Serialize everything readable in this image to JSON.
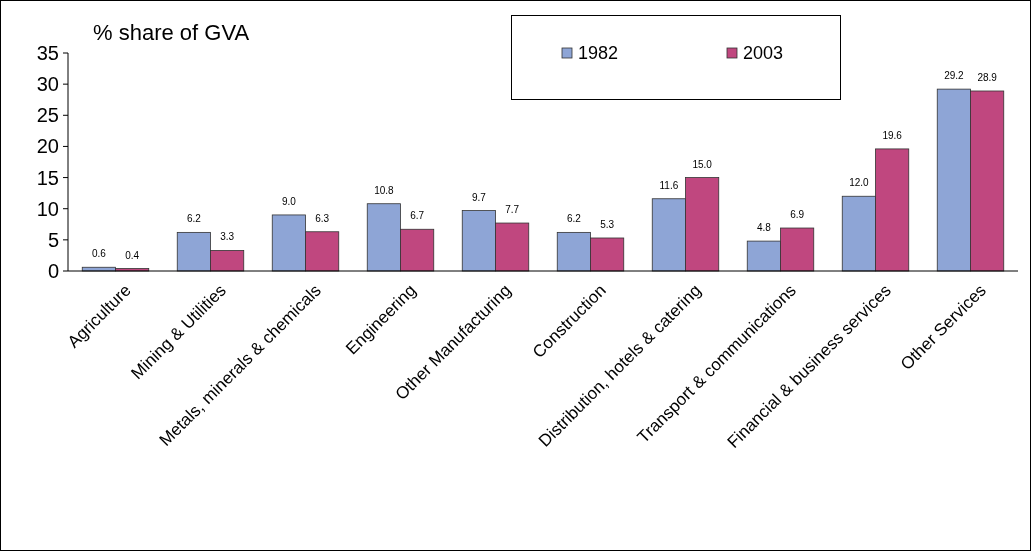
{
  "chart_data": {
    "type": "bar",
    "ylabel": "% share of GVA",
    "categories": [
      "Agriculture",
      "Mining & Utilities",
      "Metals, minerals & chemicals",
      "Engineering",
      "Other Manufacturing",
      "Construction",
      "Distribution, hotels & catering",
      "Transport & communications",
      "Financial & business services",
      "Other Services"
    ],
    "series": [
      {
        "name": "1982",
        "color": "#8ea5d6",
        "values": [
          0.6,
          6.2,
          9.0,
          10.8,
          9.7,
          6.2,
          11.6,
          4.8,
          12.0,
          29.2
        ],
        "value_labels": [
          "0.6",
          "6.2",
          "9.0",
          "10.8",
          "9.7",
          "6.2",
          "11.6",
          "4.8",
          "12.0",
          "29.2"
        ]
      },
      {
        "name": "2003",
        "color": "#c0477f",
        "values": [
          0.4,
          3.3,
          6.3,
          6.7,
          7.7,
          5.3,
          15.0,
          6.9,
          19.6,
          28.9
        ],
        "value_labels": [
          "0.4",
          "3.3",
          "6.3",
          "6.7",
          "7.7",
          "5.3",
          "15.0",
          "6.9",
          "19.6",
          "28.9"
        ]
      }
    ],
    "ylim": [
      0,
      35
    ],
    "yticks": [
      0,
      5,
      10,
      15,
      20,
      25,
      30,
      35
    ],
    "grid": false,
    "legend": "top right"
  }
}
